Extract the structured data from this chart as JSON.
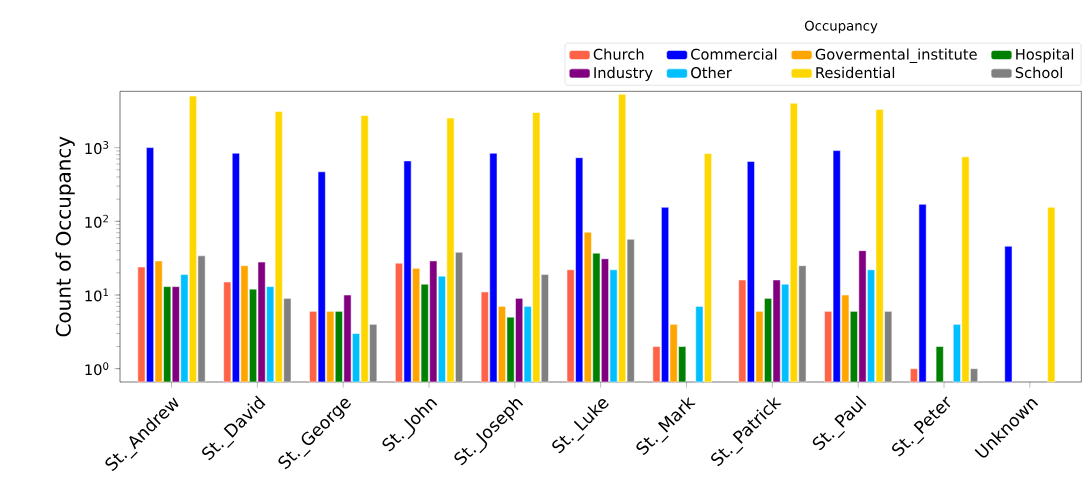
{
  "chart_data": {
    "type": "bar",
    "ylabel": "Count of Occupancy",
    "legend_title": "Occupancy",
    "legend": "top right",
    "log": true,
    "categories": [
      "St._Andrew",
      "St._David",
      "St._George",
      "St._John",
      "St._Joseph",
      "St._Luke",
      "St._Mark",
      "St._Patrick",
      "St._Paul",
      "St._Peter",
      "Unknown"
    ],
    "ylim": [
      0.66,
      5800
    ],
    "yticks": [
      {
        "value": 1,
        "label": "10$^{0}$"
      },
      {
        "value": 10,
        "label": "10$^{1}$"
      },
      {
        "value": 100,
        "label": "10$^{2}$"
      },
      {
        "value": 1000,
        "label": "10$^{3}$"
      }
    ],
    "series": [
      {
        "name": "Church",
        "color": "#ff6347",
        "values": [
          24,
          15,
          6,
          27,
          11,
          22,
          2,
          16,
          6,
          1,
          null
        ]
      },
      {
        "name": "Commercial",
        "color": "#0000ff",
        "values": [
          1000,
          840,
          470,
          660,
          840,
          730,
          155,
          650,
          910,
          170,
          46
        ]
      },
      {
        "name": "Govermental_institute",
        "color": "#ffa500",
        "values": [
          29,
          25,
          6,
          23,
          7,
          71,
          4,
          6,
          10,
          null,
          null
        ]
      },
      {
        "name": "Hospital",
        "color": "#008000",
        "values": [
          13,
          12,
          6,
          14,
          5,
          37,
          2,
          9,
          6,
          2,
          null
        ]
      },
      {
        "name": "Industry",
        "color": "#800080",
        "values": [
          13,
          28,
          10,
          29,
          9,
          31,
          null,
          16,
          40,
          null,
          null
        ]
      },
      {
        "name": "Other",
        "color": "#00bfff",
        "values": [
          19,
          13,
          3,
          18,
          7,
          22,
          7,
          14,
          22,
          4,
          null
        ]
      },
      {
        "name": "Residential",
        "color": "#ffd700",
        "values": [
          5000,
          3080,
          2730,
          2520,
          3000,
          5300,
          830,
          4000,
          3300,
          750,
          155
        ]
      },
      {
        "name": "School",
        "color": "#808080",
        "values": [
          34,
          9,
          4,
          38,
          19,
          57,
          null,
          25,
          6,
          1,
          null
        ]
      }
    ]
  }
}
